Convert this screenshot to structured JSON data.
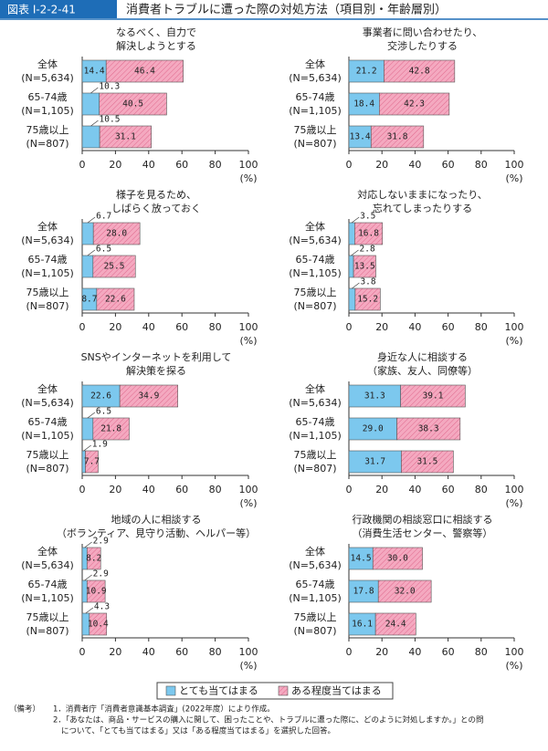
{
  "header": {
    "label": "図表 I-2-2-41",
    "title": "消費者トラブルに遭った際の対処方法（項目別・年齢層別）"
  },
  "chart_data": [
    {
      "type": "stacked-bar",
      "title": [
        "なるべく、自力で",
        "解決しようとする"
      ],
      "categories": [
        "全体",
        "65-74歳",
        "75歳以上"
      ],
      "category_notes": [
        "(N=5,634)",
        "(N=1,105)",
        "(N=807)"
      ],
      "series": [
        {
          "name": "とても当てはまる",
          "color": "#7cc8ee",
          "values": [
            14.4,
            10.3,
            10.5
          ],
          "value_labels": [
            "14.4",
            "10.3",
            "10.5"
          ]
        },
        {
          "name": "ある程度当てはまる",
          "color": "#f4a9c0",
          "values": [
            46.4,
            40.5,
            31.1
          ],
          "value_labels": [
            "46.4",
            "40.5",
            "31.1"
          ]
        }
      ],
      "xlim": [
        0,
        100
      ],
      "xticks": [
        0,
        20,
        40,
        60,
        80,
        100
      ],
      "x_unit": "(%)"
    },
    {
      "type": "stacked-bar",
      "title": [
        "事業者に問い合わせたり、",
        "交渉したりする"
      ],
      "categories": [
        "全体",
        "65-74歳",
        "75歳以上"
      ],
      "category_notes": [
        "(N=5,634)",
        "(N=1,105)",
        "(N=807)"
      ],
      "series": [
        {
          "name": "とても当てはまる",
          "color": "#7cc8ee",
          "values": [
            21.2,
            18.4,
            13.4
          ],
          "value_labels": [
            "21.2",
            "18.4",
            "13.4"
          ]
        },
        {
          "name": "ある程度当てはまる",
          "color": "#f4a9c0",
          "values": [
            42.8,
            42.3,
            31.8
          ],
          "value_labels": [
            "42.8",
            "42.3",
            "31.8"
          ]
        }
      ],
      "xlim": [
        0,
        100
      ],
      "xticks": [
        0,
        20,
        40,
        60,
        80,
        100
      ],
      "x_unit": "(%)"
    },
    {
      "type": "stacked-bar",
      "title": [
        "様子を見るため、",
        "しばらく放っておく"
      ],
      "categories": [
        "全体",
        "65-74歳",
        "75歳以上"
      ],
      "category_notes": [
        "(N=5,634)",
        "(N=1,105)",
        "(N=807)"
      ],
      "series": [
        {
          "name": "とても当てはまる",
          "color": "#7cc8ee",
          "values": [
            6.7,
            6.5,
            8.7
          ],
          "value_labels": [
            "6.7",
            "6.5",
            "8.7"
          ]
        },
        {
          "name": "ある程度当てはまる",
          "color": "#f4a9c0",
          "values": [
            28.0,
            25.5,
            22.6
          ],
          "value_labels": [
            "28.0",
            "25.5",
            "22.6"
          ]
        }
      ],
      "xlim": [
        0,
        100
      ],
      "xticks": [
        0,
        20,
        40,
        60,
        80,
        100
      ],
      "x_unit": "(%)"
    },
    {
      "type": "stacked-bar",
      "title": [
        "対応しないままになったり、",
        "忘れてしまったりする"
      ],
      "categories": [
        "全体",
        "65-74歳",
        "75歳以上"
      ],
      "category_notes": [
        "(N=5,634)",
        "(N=1,105)",
        "(N=807)"
      ],
      "series": [
        {
          "name": "とても当てはまる",
          "color": "#7cc8ee",
          "values": [
            3.5,
            2.8,
            3.8
          ],
          "value_labels": [
            "3.5",
            "2.8",
            "3.8"
          ]
        },
        {
          "name": "ある程度当てはまる",
          "color": "#f4a9c0",
          "values": [
            16.8,
            13.5,
            15.2
          ],
          "value_labels": [
            "16.8",
            "13.5",
            "15.2"
          ]
        }
      ],
      "xlim": [
        0,
        100
      ],
      "xticks": [
        0,
        20,
        40,
        60,
        80,
        100
      ],
      "x_unit": "(%)"
    },
    {
      "type": "stacked-bar",
      "title": [
        "SNSやインターネットを利用して",
        "解決策を探る"
      ],
      "categories": [
        "全体",
        "65-74歳",
        "75歳以上"
      ],
      "category_notes": [
        "(N=5,634)",
        "(N=1,105)",
        "(N=807)"
      ],
      "series": [
        {
          "name": "とても当てはまる",
          "color": "#7cc8ee",
          "values": [
            22.6,
            6.5,
            1.9
          ],
          "value_labels": [
            "22.6",
            "6.5",
            "1.9"
          ]
        },
        {
          "name": "ある程度当てはまる",
          "color": "#f4a9c0",
          "values": [
            34.9,
            21.8,
            7.7
          ],
          "value_labels": [
            "34.9",
            "21.8",
            "7.7"
          ]
        }
      ],
      "xlim": [
        0,
        100
      ],
      "xticks": [
        0,
        20,
        40,
        60,
        80,
        100
      ],
      "x_unit": "(%)"
    },
    {
      "type": "stacked-bar",
      "title": [
        "身近な人に相談する",
        "（家族、友人、同僚等）"
      ],
      "categories": [
        "全体",
        "65-74歳",
        "75歳以上"
      ],
      "category_notes": [
        "(N=5,634)",
        "(N=1,105)",
        "(N=807)"
      ],
      "series": [
        {
          "name": "とても当てはまる",
          "color": "#7cc8ee",
          "values": [
            31.3,
            29.0,
            31.7
          ],
          "value_labels": [
            "31.3",
            "29.0",
            "31.7"
          ]
        },
        {
          "name": "ある程度当てはまる",
          "color": "#f4a9c0",
          "values": [
            39.1,
            38.3,
            31.5
          ],
          "value_labels": [
            "39.1",
            "38.3",
            "31.5"
          ]
        }
      ],
      "xlim": [
        0,
        100
      ],
      "xticks": [
        0,
        20,
        40,
        60,
        80,
        100
      ],
      "x_unit": "(%)"
    },
    {
      "type": "stacked-bar",
      "title": [
        "地域の人に相談する",
        "（ボランティア、見守り活動、ヘルパー等）"
      ],
      "categories": [
        "全体",
        "65-74歳",
        "75歳以上"
      ],
      "category_notes": [
        "(N=5,634)",
        "(N=1,105)",
        "(N=807)"
      ],
      "series": [
        {
          "name": "とても当てはまる",
          "color": "#7cc8ee",
          "values": [
            2.9,
            2.9,
            4.3
          ],
          "value_labels": [
            "2.9",
            "2.9",
            "4.3"
          ]
        },
        {
          "name": "ある程度当てはまる",
          "color": "#f4a9c0",
          "values": [
            8.2,
            10.9,
            10.4
          ],
          "value_labels": [
            "8.2",
            "10.9",
            "10.4"
          ]
        }
      ],
      "xlim": [
        0,
        100
      ],
      "xticks": [
        0,
        20,
        40,
        60,
        80,
        100
      ],
      "x_unit": "(%)"
    },
    {
      "type": "stacked-bar",
      "title": [
        "行政機関の相談窓口に相談する",
        "（消費生活センター、警察等）"
      ],
      "categories": [
        "全体",
        "65-74歳",
        "75歳以上"
      ],
      "category_notes": [
        "(N=5,634)",
        "(N=1,105)",
        "(N=807)"
      ],
      "series": [
        {
          "name": "とても当てはまる",
          "color": "#7cc8ee",
          "values": [
            14.5,
            17.8,
            16.1
          ],
          "value_labels": [
            "14.5",
            "17.8",
            "16.1"
          ]
        },
        {
          "name": "ある程度当てはまる",
          "color": "#f4a9c0",
          "values": [
            30.0,
            32.0,
            24.4
          ],
          "value_labels": [
            "30.0",
            "32.0",
            "24.4"
          ]
        }
      ],
      "xlim": [
        0,
        100
      ],
      "xticks": [
        0,
        20,
        40,
        60,
        80,
        100
      ],
      "x_unit": "(%)"
    }
  ],
  "notes": {
    "label": "（備考）",
    "items": [
      "1．消費者庁「消費者意識基本調査」(2022年度）により作成。",
      "2．「あなたは、商品・サービスの購入に関して、困ったことや、トラブルに遭った際に、どのように対処しますか。」との問",
      "について、「とても当てはまる」又は「ある程度当てはまる」を選択した回答。"
    ]
  }
}
